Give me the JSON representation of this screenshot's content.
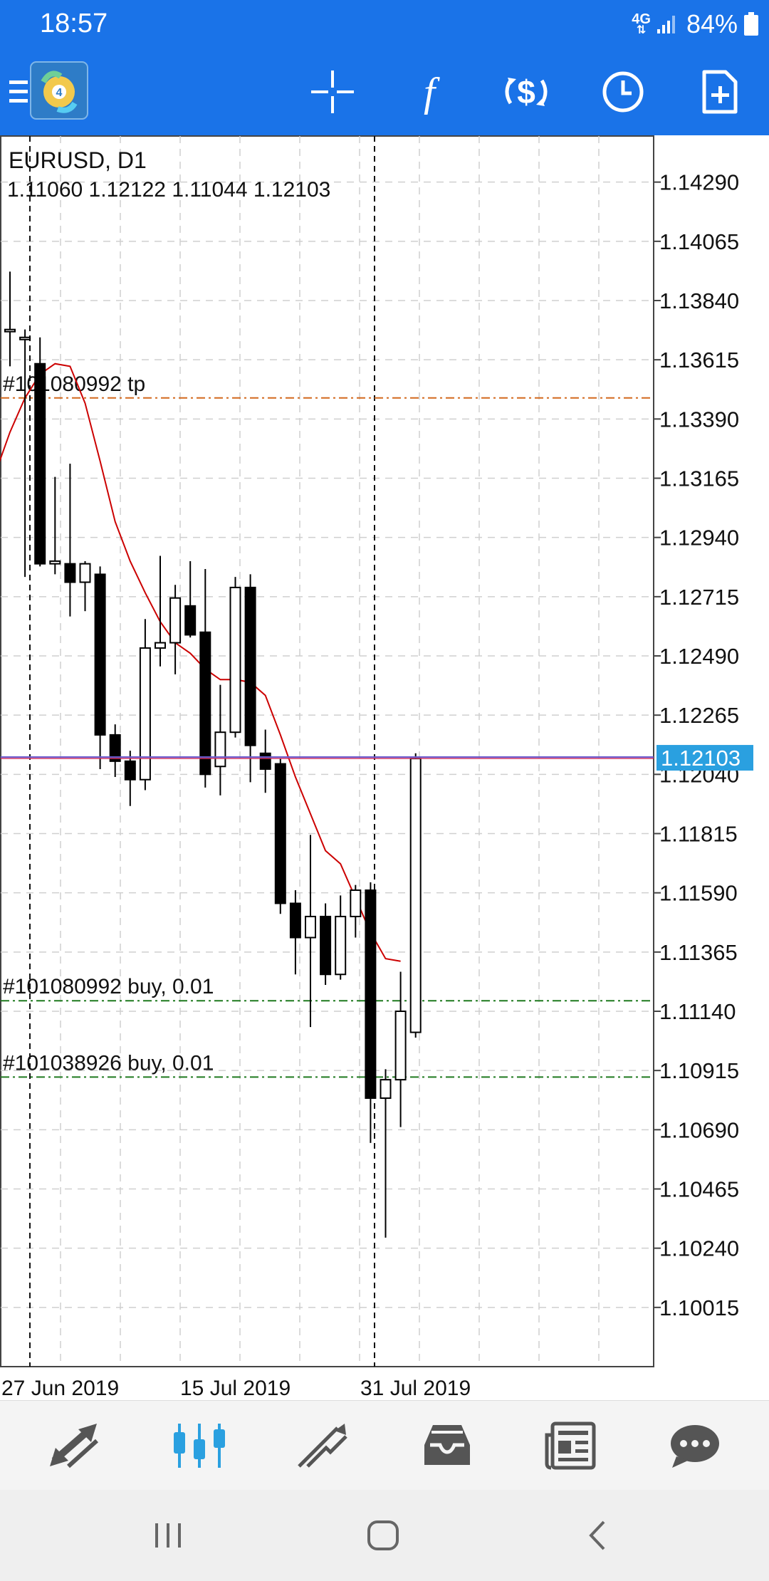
{
  "status_bar": {
    "time": "18:57",
    "network_type": "4G",
    "battery": "84%"
  },
  "toolbar": {
    "buttons": [
      {
        "name": "menu-icon"
      },
      {
        "name": "app-logo"
      },
      {
        "name": "crosshair-icon"
      },
      {
        "name": "indicators-icon"
      },
      {
        "name": "trade-icon"
      },
      {
        "name": "period-clock-icon"
      },
      {
        "name": "new-order-icon"
      }
    ]
  },
  "chart_data": {
    "type": "candlestick",
    "symbol_timeframe": "EURUSD, D1",
    "ohlc_text": "1.11060 1.12122 1.11044 1.12103",
    "y_tick_labels": [
      "1.14290",
      "1.14065",
      "1.13840",
      "1.13615",
      "1.13390",
      "1.13165",
      "1.12940",
      "1.12715",
      "1.12490",
      "1.12265",
      "1.12040",
      "1.11815",
      "1.11590",
      "1.11365",
      "1.11140",
      "1.10915",
      "1.10690",
      "1.10465",
      "1.10240",
      "1.10015"
    ],
    "ylim": [
      1.0979,
      1.14465
    ],
    "x_tick_labels": [
      "27 Jun 2019",
      "15 Jul 2019",
      "31 Jul 2019"
    ],
    "current_price": 1.12103,
    "current_price_label": "1.12103",
    "lines": [
      {
        "label": "#101080992 tp",
        "price": 1.1347,
        "color": "#d2691e"
      },
      {
        "label": "#101080992 buy, 0.01",
        "price": 1.1118,
        "color": "#1f7a1f"
      },
      {
        "label": "#101038926 buy, 0.01",
        "price": 1.1089,
        "color": "#1f7a1f"
      }
    ],
    "candles": [
      {
        "o": 1.1373,
        "h": 1.1395,
        "l": 1.1359,
        "c": 1.1373
      },
      {
        "o": 1.137,
        "h": 1.1373,
        "l": 1.1279,
        "c": 1.137
      },
      {
        "o": 1.136,
        "h": 1.137,
        "l": 1.1283,
        "c": 1.1284
      },
      {
        "o": 1.1284,
        "h": 1.1317,
        "l": 1.128,
        "c": 1.1285
      },
      {
        "o": 1.1284,
        "h": 1.1322,
        "l": 1.1264,
        "c": 1.1277
      },
      {
        "o": 1.1277,
        "h": 1.1285,
        "l": 1.1266,
        "c": 1.1284
      },
      {
        "o": 1.128,
        "h": 1.1283,
        "l": 1.1206,
        "c": 1.1219
      },
      {
        "o": 1.1219,
        "h": 1.1223,
        "l": 1.1203,
        "c": 1.1209
      },
      {
        "o": 1.1209,
        "h": 1.1213,
        "l": 1.1192,
        "c": 1.1202
      },
      {
        "o": 1.1202,
        "h": 1.1263,
        "l": 1.1198,
        "c": 1.1252
      },
      {
        "o": 1.1252,
        "h": 1.1287,
        "l": 1.1245,
        "c": 1.1254
      },
      {
        "o": 1.1254,
        "h": 1.1276,
        "l": 1.1242,
        "c": 1.1271
      },
      {
        "o": 1.1268,
        "h": 1.1285,
        "l": 1.1256,
        "c": 1.1257
      },
      {
        "o": 1.1258,
        "h": 1.1282,
        "l": 1.1199,
        "c": 1.1204
      },
      {
        "o": 1.1207,
        "h": 1.1238,
        "l": 1.1196,
        "c": 1.122
      },
      {
        "o": 1.122,
        "h": 1.1279,
        "l": 1.1218,
        "c": 1.1275
      },
      {
        "o": 1.1275,
        "h": 1.128,
        "l": 1.1201,
        "c": 1.1215
      },
      {
        "o": 1.1212,
        "h": 1.1221,
        "l": 1.1197,
        "c": 1.1206
      },
      {
        "o": 1.1208,
        "h": 1.121,
        "l": 1.1151,
        "c": 1.1155
      },
      {
        "o": 1.1155,
        "h": 1.116,
        "l": 1.1128,
        "c": 1.1142
      },
      {
        "o": 1.1142,
        "h": 1.1181,
        "l": 1.1108,
        "c": 1.115
      },
      {
        "o": 1.115,
        "h": 1.1155,
        "l": 1.1124,
        "c": 1.1128
      },
      {
        "o": 1.1128,
        "h": 1.1158,
        "l": 1.1126,
        "c": 1.115
      },
      {
        "o": 1.115,
        "h": 1.1162,
        "l": 1.1142,
        "c": 1.116
      },
      {
        "o": 1.116,
        "h": 1.1163,
        "l": 1.1064,
        "c": 1.1081
      },
      {
        "o": 1.1081,
        "h": 1.1092,
        "l": 1.1028,
        "c": 1.1088
      },
      {
        "o": 1.1088,
        "h": 1.1129,
        "l": 1.107,
        "c": 1.1114
      },
      {
        "o": 1.1106,
        "h": 1.1212,
        "l": 1.1104,
        "c": 1.121
      }
    ],
    "moving_average": [
      {
        "i": -1,
        "v": 1.1318
      },
      {
        "i": 0,
        "v": 1.1334
      },
      {
        "i": 1,
        "v": 1.1347
      },
      {
        "i": 2,
        "v": 1.1356
      },
      {
        "i": 3,
        "v": 1.136
      },
      {
        "i": 4,
        "v": 1.1359
      },
      {
        "i": 5,
        "v": 1.1345
      },
      {
        "i": 6,
        "v": 1.1323
      },
      {
        "i": 7,
        "v": 1.13
      },
      {
        "i": 8,
        "v": 1.1285
      },
      {
        "i": 9,
        "v": 1.1273
      },
      {
        "i": 10,
        "v": 1.1262
      },
      {
        "i": 11,
        "v": 1.1254
      },
      {
        "i": 12,
        "v": 1.125
      },
      {
        "i": 13,
        "v": 1.1244
      },
      {
        "i": 14,
        "v": 1.124
      },
      {
        "i": 15,
        "v": 1.124
      },
      {
        "i": 16,
        "v": 1.1239
      },
      {
        "i": 17,
        "v": 1.1234
      },
      {
        "i": 18,
        "v": 1.1219
      },
      {
        "i": 19,
        "v": 1.1203
      },
      {
        "i": 20,
        "v": 1.1189
      },
      {
        "i": 21,
        "v": 1.1175
      },
      {
        "i": 22,
        "v": 1.117
      },
      {
        "i": 23,
        "v": 1.1157
      },
      {
        "i": 24,
        "v": 1.1144
      },
      {
        "i": 25,
        "v": 1.1134
      },
      {
        "i": 26,
        "v": 1.1133
      }
    ],
    "grid": true
  },
  "bottom_nav": {
    "items": [
      {
        "name": "quotes-tab",
        "icon": "arrows-icon",
        "active": false
      },
      {
        "name": "charts-tab",
        "icon": "candles-icon",
        "active": true
      },
      {
        "name": "trade-tab",
        "icon": "trend-icon",
        "active": false
      },
      {
        "name": "history-tab",
        "icon": "inbox-icon",
        "active": false
      },
      {
        "name": "news-tab",
        "icon": "newspaper-icon",
        "active": false
      },
      {
        "name": "chat-tab",
        "icon": "chat-icon",
        "active": false
      }
    ]
  },
  "colors": {
    "header_blue": "#1a73e8",
    "accent_blue": "#2aa0e0",
    "ma_red": "#cc0000"
  }
}
